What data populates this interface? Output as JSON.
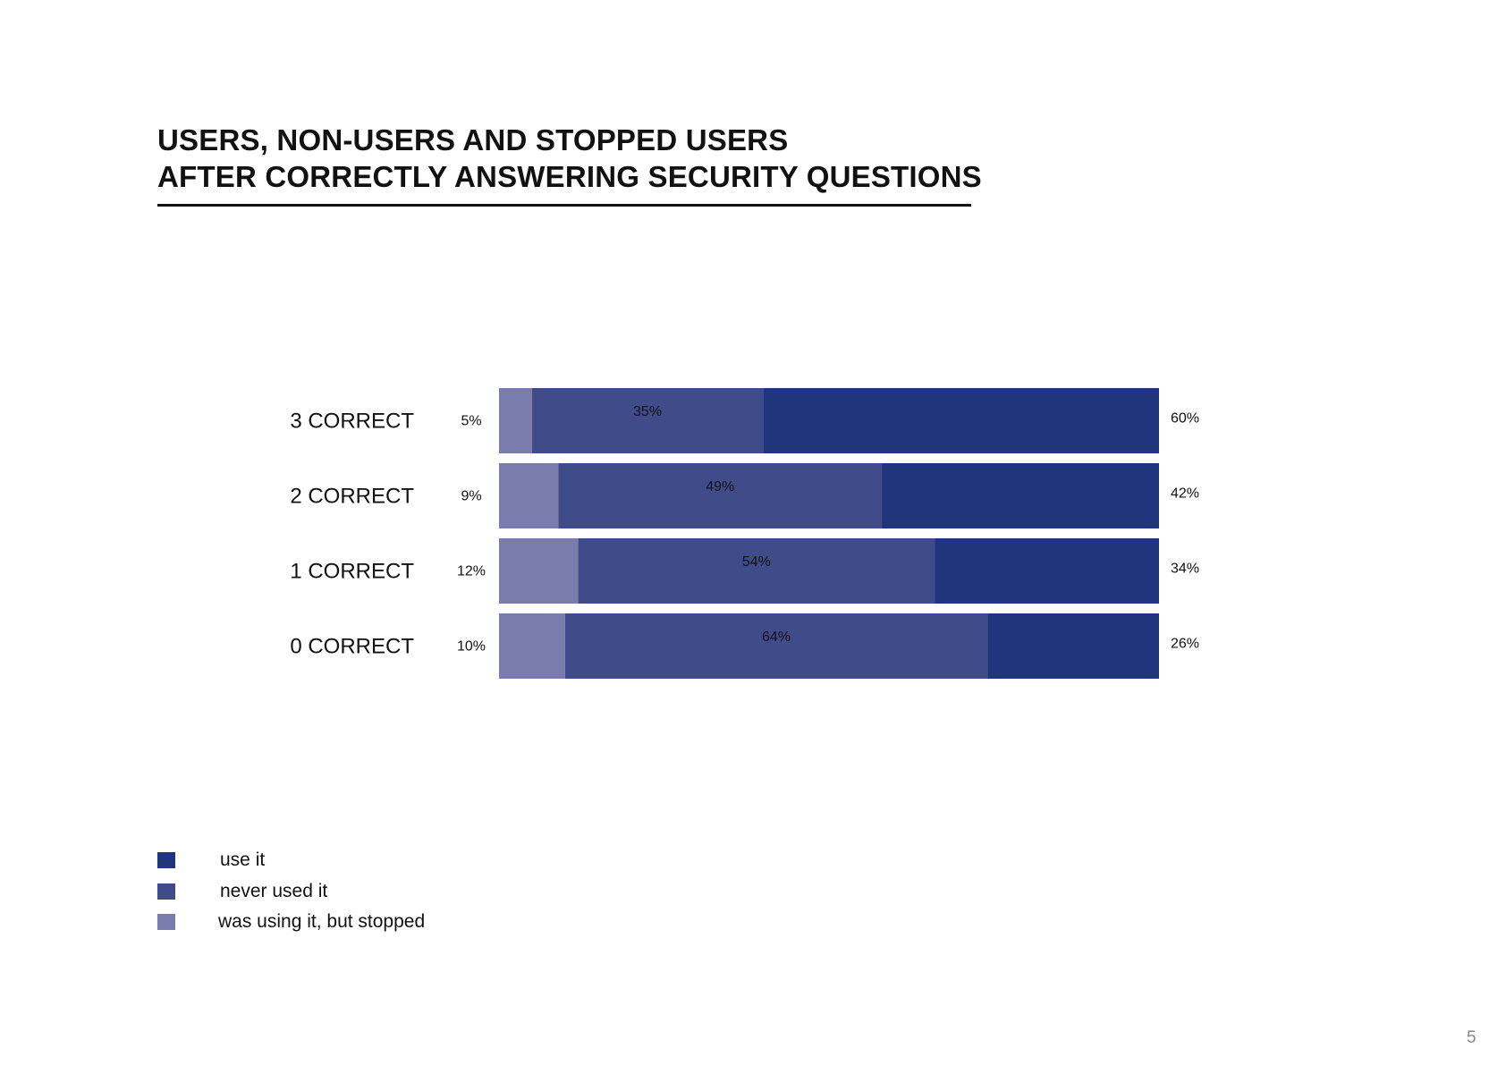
{
  "title": {
    "line1": "USERS, NON-USERS AND STOPPED USERS",
    "line2": "AFTER CORRECTLY ANSWERING SECURITY QUESTIONS"
  },
  "legend": [
    {
      "label": "use it",
      "color": "#20367c"
    },
    {
      "label": "never used it",
      "color": "#404b8a"
    },
    {
      "label": "was using it, but stopped",
      "color": "#7a7cad"
    }
  ],
  "page_number": "5",
  "chart_data": {
    "type": "bar",
    "orientation": "horizontal",
    "stacked": true,
    "categories": [
      "3 CORRECT",
      "2 CORRECT",
      "1 CORRECT",
      "0 CORRECT"
    ],
    "series": [
      {
        "name": "was using it, but stopped",
        "color": "#7a7cad",
        "values": [
          5,
          9,
          12,
          10
        ],
        "labels": [
          "5%",
          "9%",
          "12%",
          "10%"
        ]
      },
      {
        "name": "never used it",
        "color": "#404b8a",
        "values": [
          35,
          49,
          54,
          64
        ],
        "labels": [
          "35%",
          "49%",
          "54%",
          "64%"
        ]
      },
      {
        "name": "use it",
        "color": "#20367c",
        "values": [
          60,
          42,
          34,
          26
        ],
        "labels": [
          "60%",
          "42%",
          "34%",
          "26%"
        ]
      }
    ],
    "xlim": [
      0,
      100
    ],
    "grid": false,
    "legend_position": "bottom-left"
  }
}
